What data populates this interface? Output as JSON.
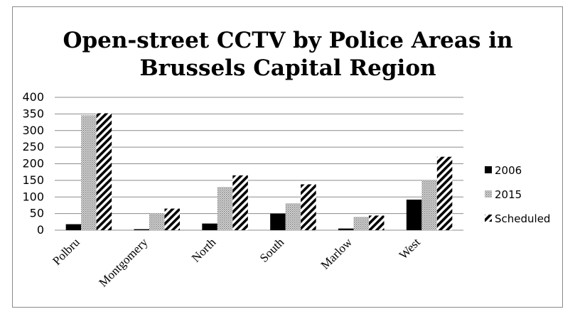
{
  "chart_data": {
    "type": "bar",
    "title": "Open-street CCTV by Police Areas in Brussels Capital Region",
    "title_lines": [
      "Open-street CCTV by Police Areas in",
      "Brussels Capital Region"
    ],
    "xlabel": "",
    "ylabel": "",
    "categories": [
      "Polbru",
      "Montgomery",
      "North",
      "South",
      "Marlow",
      "West"
    ],
    "series": [
      {
        "name": "2006",
        "values": [
          18,
          3,
          20,
          50,
          5,
          92
        ],
        "pattern": "solid",
        "color": "#000000"
      },
      {
        "name": "2015",
        "values": [
          346,
          51,
          130,
          81,
          40,
          150
        ],
        "pattern": "dots",
        "color": "#b3b3b3"
      },
      {
        "name": "Scheduled",
        "values": [
          352,
          65,
          165,
          138,
          44,
          221
        ],
        "pattern": "diagonal",
        "color": "#000000"
      }
    ],
    "ylim": [
      0,
      400
    ],
    "yticks": [
      "0",
      "50",
      "100",
      "150",
      "200",
      "250",
      "300",
      "350",
      "400"
    ],
    "grid": true,
    "legend_position": "right"
  }
}
